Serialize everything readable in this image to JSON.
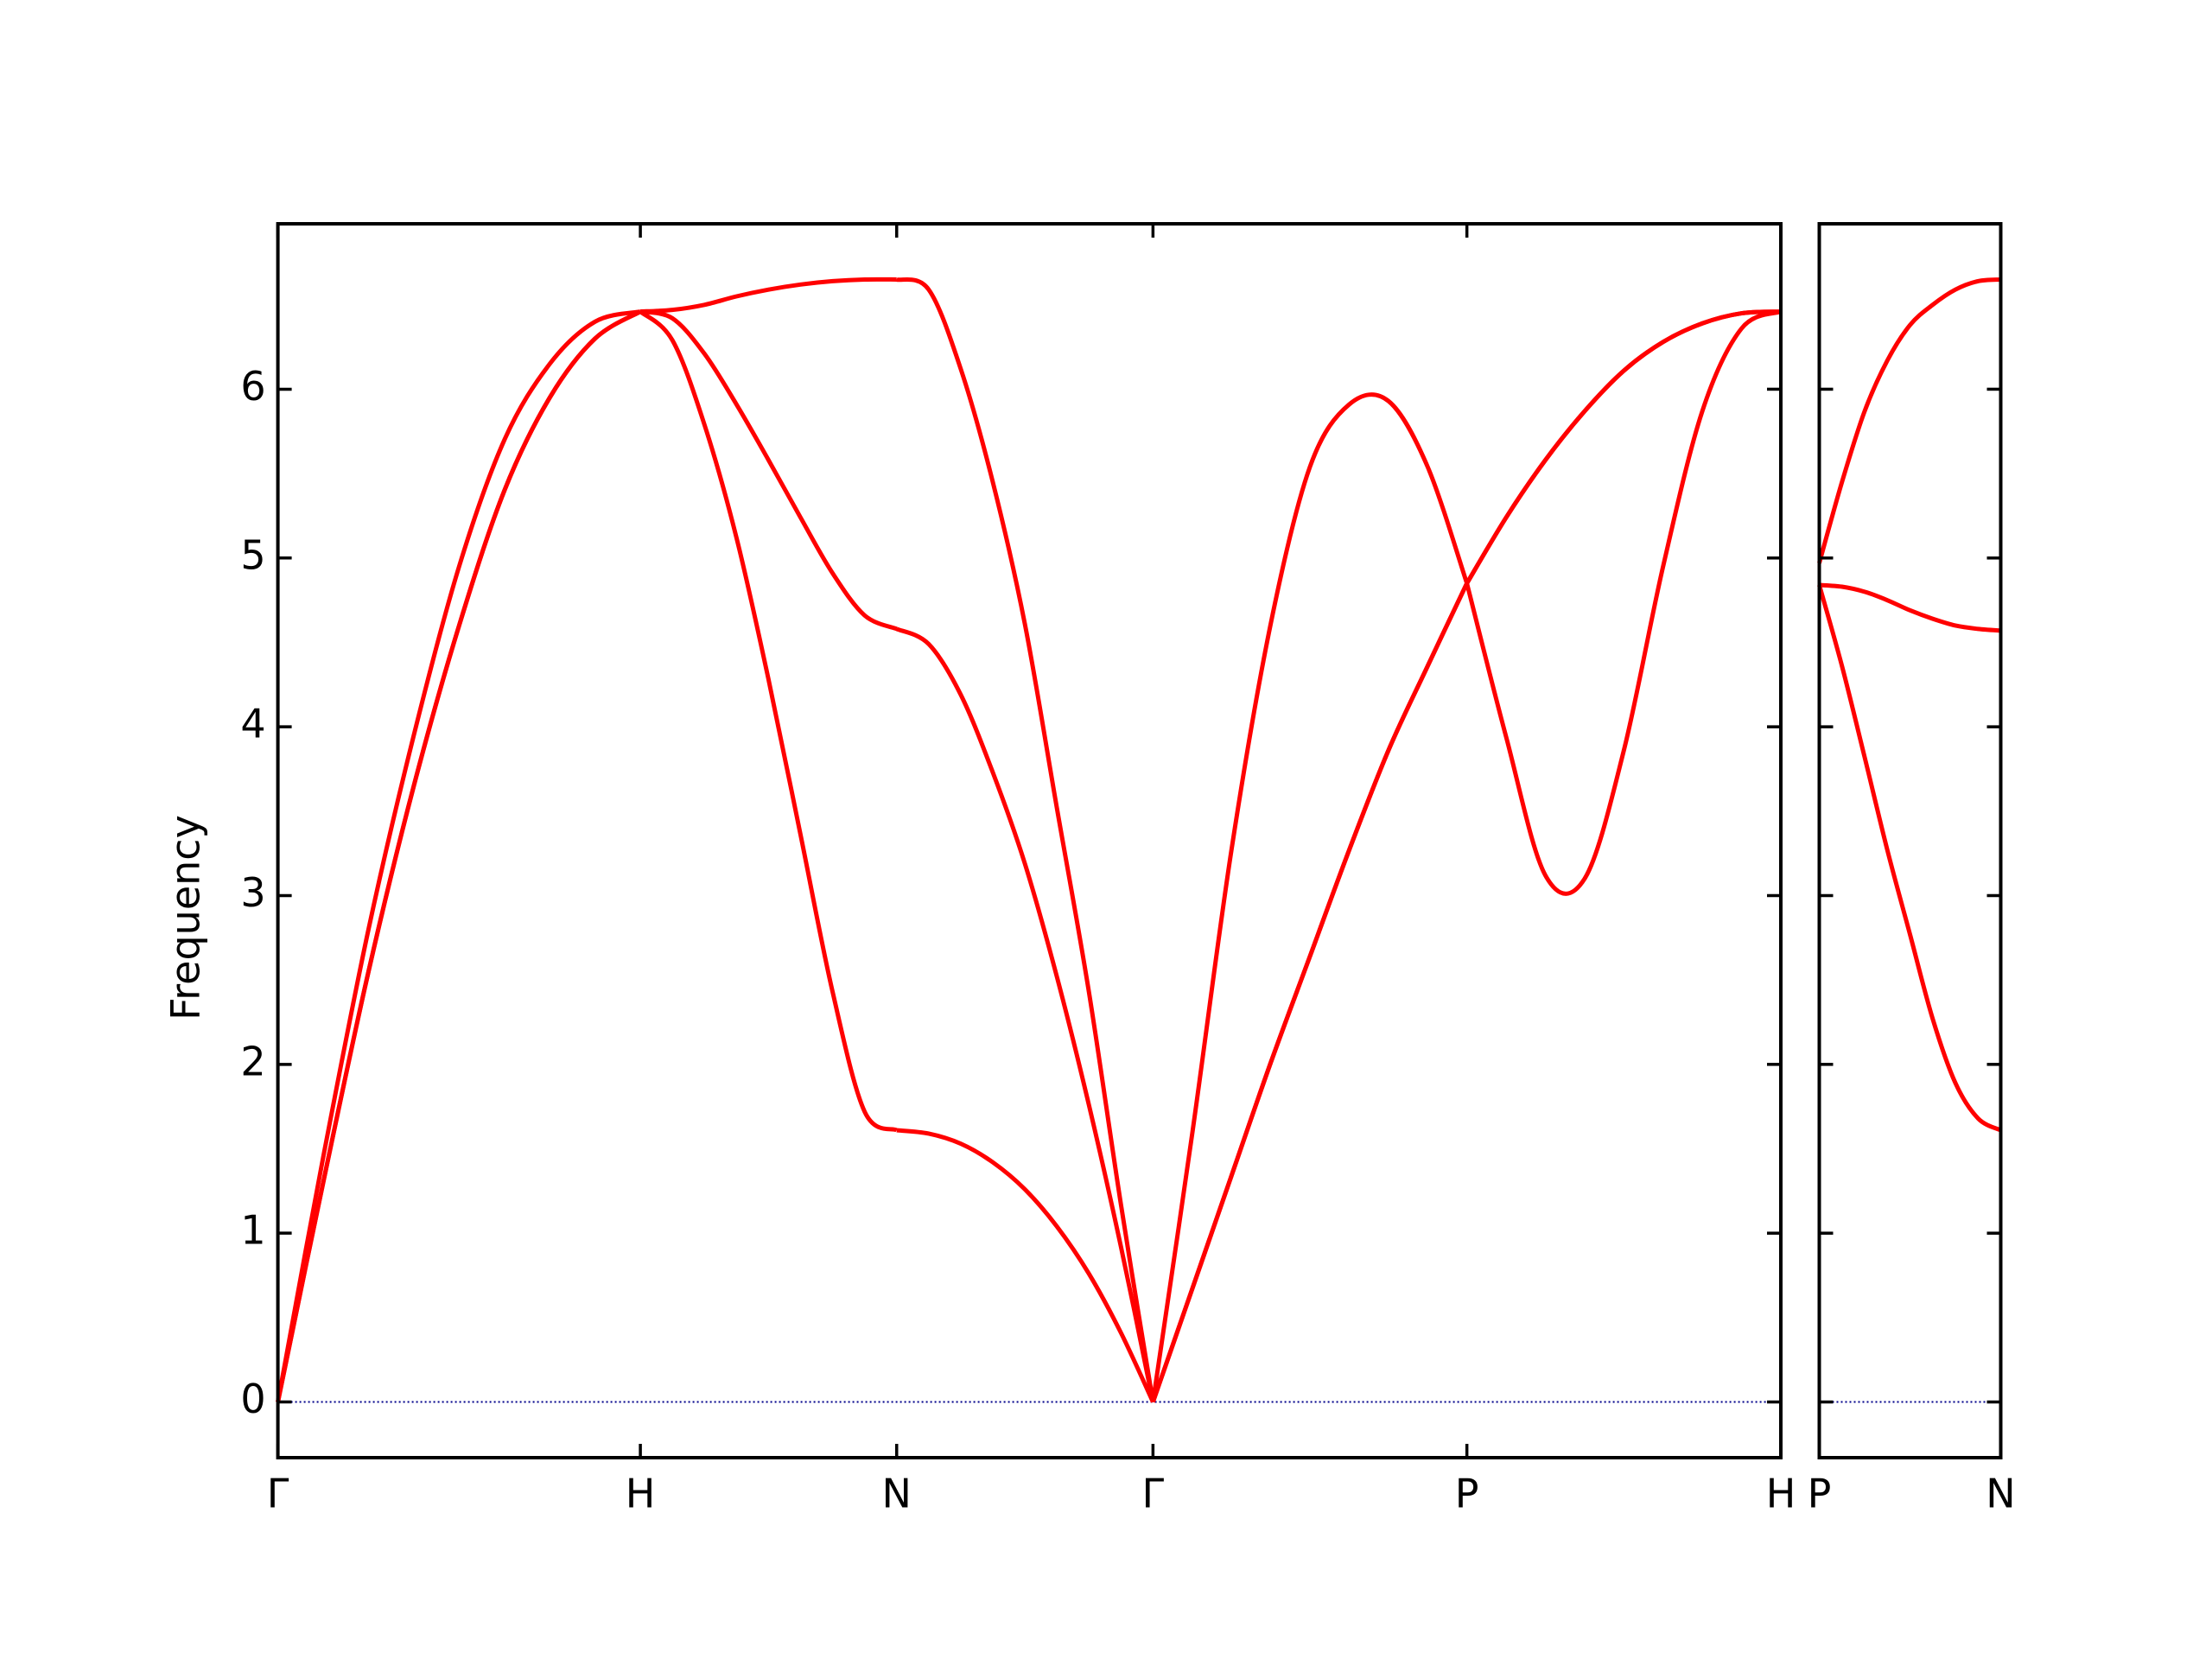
{
  "chart_data": [
    {
      "type": "line",
      "ylabel": "Frequency",
      "x": [
        0,
        0.125,
        0.25,
        0.375,
        0.5,
        0.625,
        0.75,
        0.875,
        1,
        1.0884,
        1.1768,
        1.2652,
        1.3536,
        1.4419,
        1.5303,
        1.6187,
        1.7071,
        1.7955,
        1.8839,
        1.9723,
        2.0607,
        2.149,
        2.2374,
        2.3258,
        2.4142,
        2.5225,
        2.6307,
        2.739,
        2.8472,
        2.9555,
        3.0637,
        3.172,
        3.2802,
        3.3885,
        3.4967,
        3.605,
        3.7132,
        3.8215,
        3.9297,
        4.038,
        4.1463
      ],
      "series": [
        {
          "color": "#ff0000",
          "values": [
            0,
            1.3,
            2.55,
            3.65,
            4.6,
            5.4,
            5.95,
            6.3,
            6.46,
            6.29,
            5.79,
            5.12,
            4.28,
            3.36,
            2.43,
            1.72,
            1.61,
            1.59,
            1.53,
            1.42,
            1.26,
            1.04,
            0.76,
            0.41,
            0,
            0.67,
            1.34,
            2.01,
            2.64,
            3.27,
            3.86,
            4.36,
            4.85,
            5.24,
            5.58,
            5.87,
            6.11,
            6.28,
            6.39,
            6.45,
            6.46
          ]
        },
        {
          "color": "#ff0000",
          "values": [
            0,
            1.3,
            2.55,
            3.65,
            4.6,
            5.4,
            5.95,
            6.3,
            6.46,
            6.42,
            6.21,
            5.91,
            5.58,
            5.24,
            4.91,
            4.66,
            4.58,
            4.49,
            4.19,
            3.73,
            3.19,
            2.52,
            1.76,
            0.92,
            0,
            0.67,
            1.34,
            2.01,
            2.64,
            3.27,
            3.86,
            4.36,
            4.85,
            5.24,
            5.58,
            5.87,
            6.11,
            6.28,
            6.39,
            6.45,
            6.46
          ]
        },
        {
          "color": "#ff0000",
          "values": [
            0,
            1.45,
            2.8,
            3.95,
            4.95,
            5.7,
            6.15,
            6.4,
            6.46,
            6.47,
            6.5,
            6.55,
            6.59,
            6.62,
            6.64,
            6.65,
            6.65,
            6.59,
            6.12,
            5.45,
            4.61,
            3.52,
            2.43,
            1.17,
            0,
            1.59,
            3.27,
            4.61,
            5.54,
            5.91,
            5.93,
            5.54,
            4.85,
            3.94,
            3.12,
            3.1,
            3.86,
            4.95,
            5.87,
            6.36,
            6.46
          ]
        }
      ],
      "xlim": [
        0,
        4.1463
      ],
      "xticks": [
        {
          "value": 0,
          "label": "Γ"
        },
        {
          "value": 1,
          "label": "H"
        },
        {
          "value": 1.7071,
          "label": "N"
        },
        {
          "value": 2.4142,
          "label": "Γ"
        },
        {
          "value": 3.2802,
          "label": "P"
        },
        {
          "value": 4.1463,
          "label": "H"
        }
      ],
      "ylim": [
        -0.33,
        6.98
      ],
      "yticks": [
        0,
        1,
        2,
        3,
        4,
        5,
        6
      ],
      "zero_line": {
        "y": 0,
        "color": "#00008b"
      }
    },
    {
      "type": "line",
      "sharey": true,
      "x": [
        4.1463,
        4.2088,
        4.2713,
        4.3338,
        4.3963,
        4.4588,
        4.5213,
        4.5838,
        4.6463
      ],
      "series": [
        {
          "color": "#ff0000",
          "values": [
            4.84,
            4.36,
            3.82,
            3.27,
            2.77,
            2.27,
            1.89,
            1.68,
            1.61
          ]
        },
        {
          "color": "#ff0000",
          "values": [
            4.84,
            4.83,
            4.8,
            4.75,
            4.69,
            4.64,
            4.6,
            4.58,
            4.57
          ]
        },
        {
          "color": "#ff0000",
          "values": [
            4.97,
            5.45,
            5.87,
            6.17,
            6.38,
            6.5,
            6.59,
            6.64,
            6.65
          ]
        }
      ],
      "xlim": [
        4.1463,
        4.6463
      ],
      "xticks": [
        {
          "value": 4.1463,
          "label": "P"
        },
        {
          "value": 4.6463,
          "label": "N"
        }
      ],
      "zero_line": {
        "y": 0,
        "color": "#00008b"
      }
    }
  ]
}
